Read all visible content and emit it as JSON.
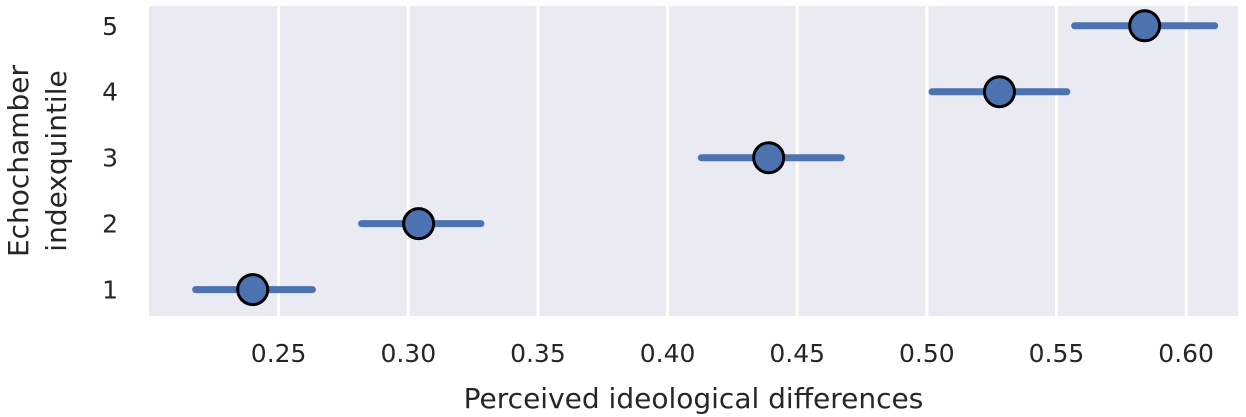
{
  "chart_data": {
    "type": "scatter",
    "style": "point estimates with horizontal error bars",
    "xlabel": "Perceived ideological differences",
    "ylabel_lines": [
      "Echochamber",
      "indexquintile"
    ],
    "xlim": [
      0.2,
      0.62
    ],
    "ylim": [
      0.6,
      5.3
    ],
    "xticks": [
      0.25,
      0.3,
      0.35,
      0.4,
      0.45,
      0.5,
      0.55,
      0.6
    ],
    "xtick_labels": [
      "0.25",
      "0.30",
      "0.35",
      "0.40",
      "0.45",
      "0.50",
      "0.55",
      "0.60"
    ],
    "yticks": [
      1,
      2,
      3,
      4,
      5
    ],
    "ytick_labels": [
      "1",
      "2",
      "3",
      "4",
      "5"
    ],
    "grid": "vertical lines at x ticks",
    "background_color": "#eaeaf2",
    "marker_color": "#4c72b0",
    "points": [
      {
        "quintile": 1,
        "estimate": 0.24,
        "ci_low": 0.218,
        "ci_high": 0.263
      },
      {
        "quintile": 2,
        "estimate": 0.304,
        "ci_low": 0.282,
        "ci_high": 0.328
      },
      {
        "quintile": 3,
        "estimate": 0.439,
        "ci_low": 0.413,
        "ci_high": 0.467
      },
      {
        "quintile": 4,
        "estimate": 0.528,
        "ci_low": 0.502,
        "ci_high": 0.554
      },
      {
        "quintile": 5,
        "estimate": 0.584,
        "ci_low": 0.557,
        "ci_high": 0.611
      }
    ]
  }
}
